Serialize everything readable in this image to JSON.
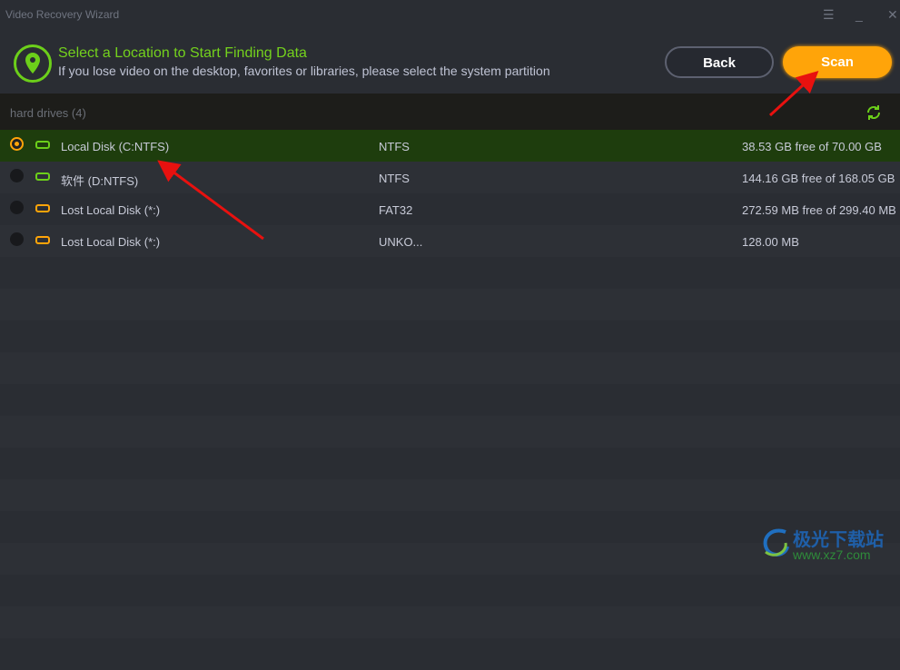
{
  "window": {
    "title": "Video Recovery Wizard"
  },
  "header": {
    "title": "Select a Location to Start Finding Data",
    "subtitle": "If you lose video on the desktop, favorites or libraries, please select the system partition",
    "back_label": "Back",
    "scan_label": "Scan"
  },
  "colors": {
    "accent_green": "#74d11d",
    "accent_orange": "#ffa409",
    "selected_row": "#1e3d0d"
  },
  "group": {
    "label": "hard drives (4)"
  },
  "drives": [
    {
      "name": "Local Disk (C:NTFS)",
      "fs": "NTFS",
      "size": "38.53 GB free of 70.00 GB",
      "selected": true,
      "icon": "system-drive-icon",
      "icon_color": "#6ccf1a"
    },
    {
      "name": "软件 (D:NTFS)",
      "fs": "NTFS",
      "size": "144.16 GB free of 168.05 GB",
      "selected": false,
      "icon": "drive-icon",
      "icon_color": "#6ccf1a"
    },
    {
      "name": "Lost Local Disk (*:)",
      "fs": "FAT32",
      "size": "272.59 MB free of 299.40 MB",
      "selected": false,
      "icon": "lost-drive-icon",
      "icon_color": "#ffa409"
    },
    {
      "name": "Lost Local Disk (*:)",
      "fs": "UNKO...",
      "size": "128.00 MB",
      "selected": false,
      "icon": "lost-drive-icon",
      "icon_color": "#ffa409"
    }
  ],
  "watermark": {
    "title": "极光下载站",
    "url": "www.xz7.com"
  }
}
